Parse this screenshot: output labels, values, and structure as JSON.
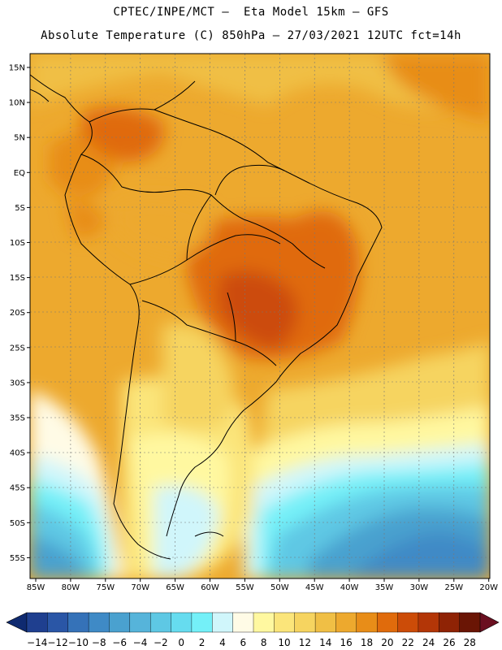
{
  "title": {
    "line1": "CPTEC/INPE/MCT –  Eta Model 15km – GFS",
    "line2": "Absolute Temperature (C) 850hPa – 27/03/2021 12UTC fct=14h"
  },
  "map": {
    "lat_labels": [
      "15N",
      "10N",
      "5N",
      "EQ",
      "5S",
      "10S",
      "15S",
      "20S",
      "25S",
      "30S",
      "35S",
      "40S",
      "45S",
      "50S",
      "55S"
    ],
    "lon_labels": [
      "85W",
      "80W",
      "75W",
      "70W",
      "65W",
      "60W",
      "55W",
      "50W",
      "45W",
      "40W",
      "35W",
      "30W",
      "25W",
      "20W"
    ]
  },
  "colorbar": {
    "labels": [
      "-14",
      "-12",
      "-10",
      "-8",
      "-6",
      "-4",
      "-2",
      "0",
      "2",
      "4",
      "6",
      "8",
      "10",
      "12",
      "14",
      "16",
      "18",
      "20",
      "22",
      "24",
      "26",
      "28"
    ],
    "colors": [
      "#1f3f8f",
      "#2a56a6",
      "#3572b8",
      "#3f8ac6",
      "#4aa1cf",
      "#56b4da",
      "#5ec8e4",
      "#66dcef",
      "#74f0f8",
      "#d0f6fb",
      "#fffbe6",
      "#fff8a0",
      "#fbe57a",
      "#f6d460",
      "#f0bf45",
      "#eda92e",
      "#e88d18",
      "#e06b0c",
      "#cc4c08",
      "#b33607",
      "#8f2305",
      "#6a1505"
    ],
    "left_arrow_color": "#0f2a70",
    "right_arrow_color": "#6a0f20"
  }
}
